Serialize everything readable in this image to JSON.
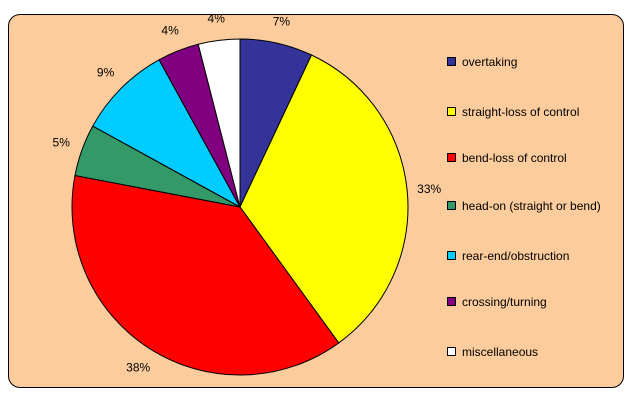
{
  "chart_data": {
    "type": "pie",
    "categories": [
      "overtaking",
      "straight-loss of control",
      "bend-loss of control",
      "head-on (straight or bend)",
      "rear-end/obstruction",
      "crossing/turning",
      "miscellaneous"
    ],
    "values": [
      7,
      33,
      38,
      5,
      9,
      4,
      4
    ],
    "labels": [
      "7%",
      "33%",
      "38%",
      "5%",
      "9%",
      "4%",
      "4%"
    ],
    "colors": [
      "#333399",
      "#ffff00",
      "#ff0000",
      "#339966",
      "#00ccff",
      "#800080",
      "#ffffff"
    ],
    "legend_position": "right",
    "background": "#fccc9c"
  }
}
